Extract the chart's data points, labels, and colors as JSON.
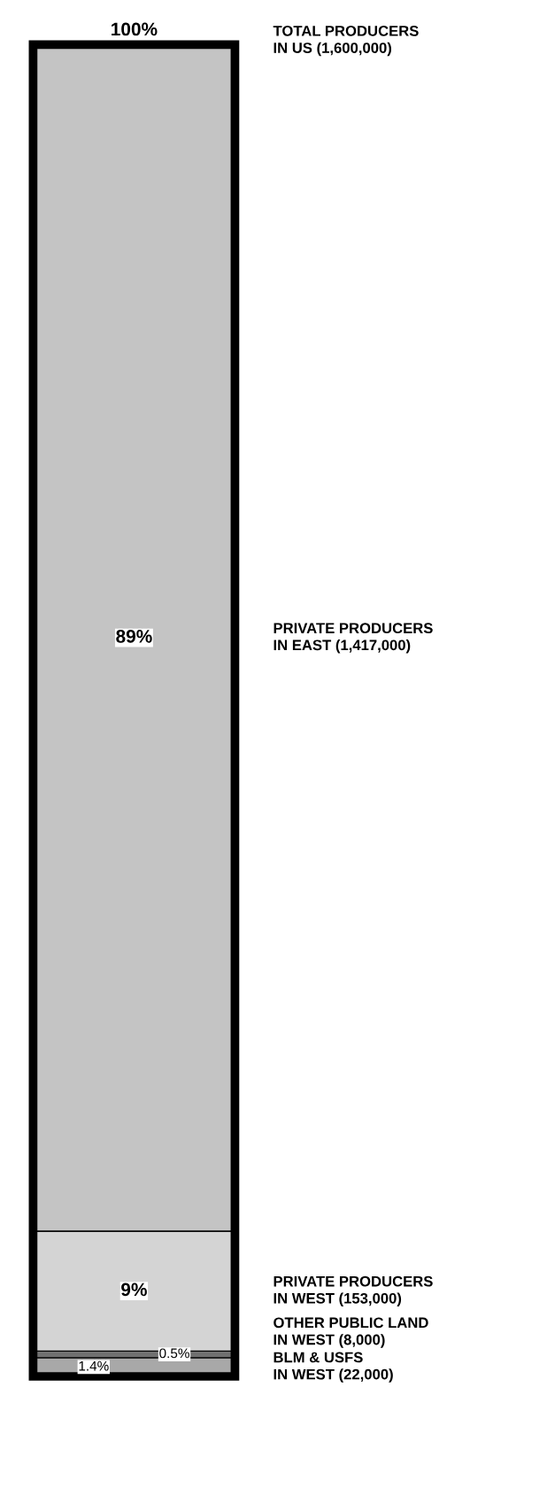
{
  "chart_data": {
    "type": "bar",
    "stacked": true,
    "categories": [
      null
    ],
    "data_labels": false,
    "series": [
      {
        "name": "BLM & USFS\nIN WEST (22,000)",
        "color": "#a8a8a8",
        "values": [
          1.4
        ],
        "value_labels": [
          "1.4%"
        ]
      },
      {
        "name": "OTHER PUBLIC LAND\nIN WEST (8,000)",
        "color": "#707070",
        "values": [
          0.5
        ],
        "value_labels": [
          "0.5%"
        ]
      },
      {
        "name": "PRIVATE PRODUCERS\nIN WEST (153,000)",
        "color": "#d4d4d4",
        "values": [
          9
        ],
        "value_labels": [
          "9%"
        ]
      },
      {
        "name": "PRIVATE PRODUCERS\nIN EAST (1,417,000)",
        "color": "#c4c4c4",
        "values": [
          89
        ],
        "value_labels": [
          "89%"
        ]
      }
    ],
    "totals": [
      "100%"
    ],
    "annotations": [
      "TOTAL PRODUCERS\nIN US (1,600,000)"
    ]
  }
}
